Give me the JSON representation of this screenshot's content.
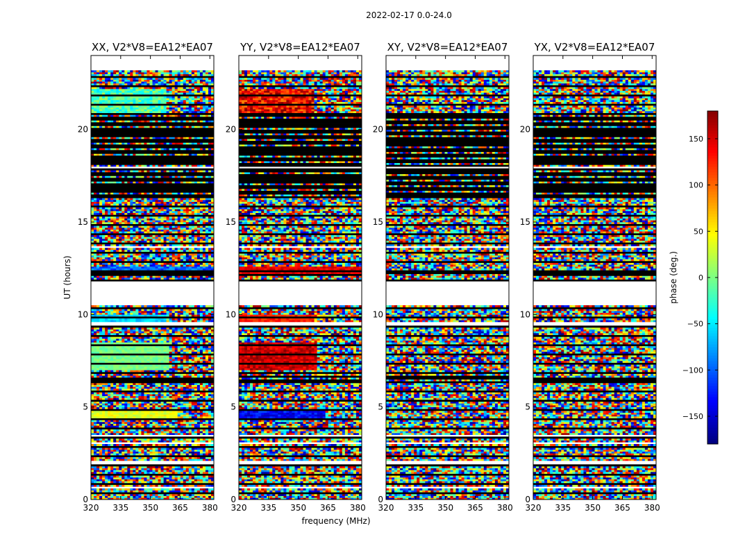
{
  "chart_data": {
    "type": "heatmap",
    "title": "2022-02-17 0.0-24.0",
    "xlabel": "frequency (MHz)",
    "ylabel": "UT (hours)",
    "xlim": [
      320,
      382
    ],
    "ylim": [
      0,
      24
    ],
    "xticks": [
      320,
      335,
      350,
      365,
      380
    ],
    "yticks": [
      0,
      5,
      10,
      15,
      20
    ],
    "colorbar": {
      "label": "phase (deg.)",
      "range": [
        -180,
        180
      ],
      "ticks": [
        150,
        100,
        50,
        0,
        -50,
        -100,
        -150
      ],
      "colormap": [
        "#00007f",
        "#0000ff",
        "#007fff",
        "#00ffff",
        "#7fff7f",
        "#ffff00",
        "#ff7f00",
        "#ff0000",
        "#7f0000"
      ]
    },
    "panels": [
      {
        "title": "XX, V2*V8=EA12*EA07",
        "mode": "xx"
      },
      {
        "title": "YY, V2*V8=EA12*EA07",
        "mode": "yy"
      },
      {
        "title": "XY, V2*V8=EA12*EA07",
        "mode": "noise"
      },
      {
        "title": "YX, V2*V8=EA12*EA07",
        "mode": "noise"
      }
    ],
    "no_data_hours": [
      [
        0.55,
        0.7
      ],
      [
        1.05,
        1.15
      ],
      [
        1.9,
        2.1
      ],
      [
        3.0,
        3.15
      ],
      [
        3.4,
        3.55
      ],
      [
        9.4,
        9.6
      ],
      [
        10.55,
        11.8
      ],
      [
        13.6,
        13.75
      ],
      [
        17.9,
        18.0
      ],
      [
        23.2,
        24.0
      ]
    ],
    "flagged_hours": [
      [
        6.4,
        6.7
      ],
      [
        5.3,
        5.45
      ],
      [
        12.1,
        12.3
      ],
      [
        16.4,
        17.8
      ],
      [
        18.0,
        20.9
      ]
    ]
  }
}
